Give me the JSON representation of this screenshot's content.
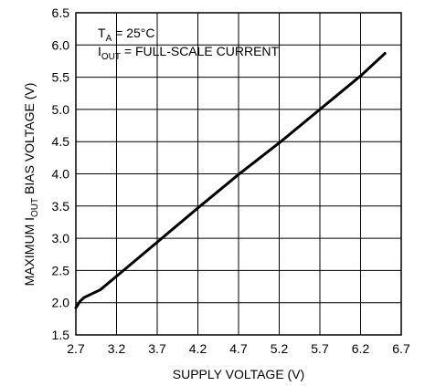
{
  "chart_data": {
    "type": "line",
    "title": "",
    "xlabel": "SUPPLY VOLTAGE (V)",
    "ylabel": {
      "prefix": "MAXIMUM I",
      "sub": "OUT",
      "suffix": " BIAS VOLTAGE (V)"
    },
    "xlim": [
      2.7,
      6.7
    ],
    "ylim": [
      1.5,
      6.5
    ],
    "x_ticks": [
      "2.7",
      "3.2",
      "3.7",
      "4.2",
      "4.7",
      "5.2",
      "5.7",
      "6.2",
      "6.7"
    ],
    "y_ticks": [
      "1.5",
      "2.0",
      "2.5",
      "3.0",
      "3.5",
      "4.0",
      "4.5",
      "5.0",
      "5.5",
      "6.0",
      "6.5"
    ],
    "grid": true,
    "annotations": {
      "line1": {
        "prefix": "T",
        "sub": "A",
        "suffix": " = 25°C"
      },
      "line2": {
        "prefix": "I",
        "sub": "OUT",
        "suffix": " = FULL-SCALE CURRENT"
      }
    },
    "series": [
      {
        "color": "#000000",
        "x": [
          2.7,
          2.75,
          2.8,
          2.9,
          3.0,
          3.2,
          3.7,
          4.2,
          4.7,
          5.2,
          5.7,
          6.2,
          6.5
        ],
        "y": [
          1.92,
          2.02,
          2.08,
          2.14,
          2.2,
          2.41,
          2.94,
          3.47,
          3.99,
          4.48,
          5.0,
          5.52,
          5.87
        ]
      }
    ]
  }
}
